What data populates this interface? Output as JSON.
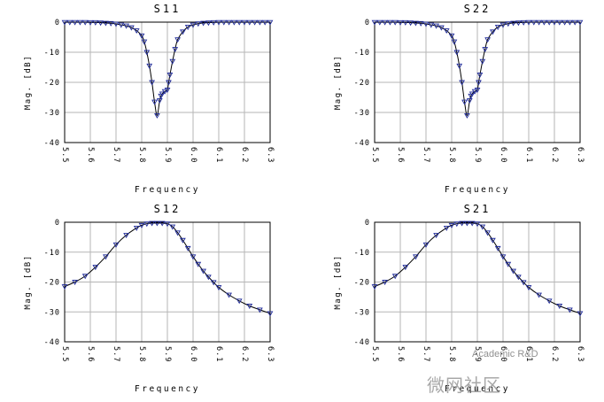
{
  "chart_data": [
    {
      "type": "line",
      "title": "S11",
      "xlabel": "Frequency",
      "ylabel": "Mag. [dB]",
      "xlim": [
        5.5,
        6.3
      ],
      "ylim": [
        -40,
        0
      ],
      "xticks": [
        "5.5",
        "5.6",
        "5.7",
        "5.8",
        "5.9",
        "6.0",
        "6.1",
        "6.2",
        "6.3"
      ],
      "yticks": [
        "0",
        "-10",
        "-20",
        "-30",
        "-40"
      ],
      "grid": true,
      "colors": {
        "line": "#000000",
        "markers": "#1f2a99"
      },
      "series": [
        {
          "x": [
            5.5,
            5.52,
            5.54,
            5.56,
            5.58,
            5.6,
            5.62,
            5.64,
            5.66,
            5.68,
            5.7,
            5.72,
            5.74,
            5.76,
            5.78,
            5.8,
            5.81,
            5.82,
            5.83,
            5.84,
            5.85,
            5.86,
            5.87,
            5.875,
            5.88,
            5.89,
            5.9,
            5.905,
            5.91,
            5.92,
            5.93,
            5.94,
            5.96,
            5.98,
            6.0,
            6.02,
            6.04,
            6.06,
            6.08,
            6.1,
            6.12,
            6.14,
            6.16,
            6.18,
            6.2,
            6.22,
            6.24,
            6.26,
            6.28,
            6.3
          ],
          "values": [
            -0.05,
            -0.05,
            -0.05,
            -0.05,
            -0.05,
            -0.1,
            -0.1,
            -0.2,
            -0.3,
            -0.4,
            -0.6,
            -0.9,
            -1.2,
            -1.8,
            -2.8,
            -4.5,
            -6.5,
            -10.0,
            -14.5,
            -20.0,
            -26.5,
            -31.0,
            -26.0,
            -24.5,
            -23.8,
            -23.0,
            -22.5,
            -20.0,
            -17.5,
            -13.0,
            -9.0,
            -5.8,
            -3.2,
            -1.6,
            -0.9,
            -0.5,
            -0.3,
            -0.2,
            -0.1,
            -0.05,
            -0.05,
            -0.05,
            -0.05,
            -0.05,
            -0.05,
            -0.05,
            -0.05,
            -0.05,
            -0.05,
            -0.05
          ]
        }
      ]
    },
    {
      "type": "line",
      "title": "S22",
      "xlabel": "Frequency",
      "ylabel": "Mag. [dB]",
      "xlim": [
        5.5,
        6.3
      ],
      "ylim": [
        -40,
        0
      ],
      "xticks": [
        "5.5",
        "5.6",
        "5.7",
        "5.8",
        "5.9",
        "6.0",
        "6.1",
        "6.2",
        "6.3"
      ],
      "yticks": [
        "0",
        "-10",
        "-20",
        "-30",
        "-40"
      ],
      "grid": true,
      "colors": {
        "line": "#000000",
        "markers": "#1f2a99"
      },
      "series": [
        {
          "x": [
            5.5,
            5.52,
            5.54,
            5.56,
            5.58,
            5.6,
            5.62,
            5.64,
            5.66,
            5.68,
            5.7,
            5.72,
            5.74,
            5.76,
            5.78,
            5.8,
            5.81,
            5.82,
            5.83,
            5.84,
            5.85,
            5.86,
            5.87,
            5.875,
            5.88,
            5.89,
            5.9,
            5.905,
            5.91,
            5.92,
            5.93,
            5.94,
            5.96,
            5.98,
            6.0,
            6.02,
            6.04,
            6.06,
            6.08,
            6.1,
            6.12,
            6.14,
            6.16,
            6.18,
            6.2,
            6.22,
            6.24,
            6.26,
            6.28,
            6.3
          ],
          "values": [
            -0.05,
            -0.05,
            -0.05,
            -0.05,
            -0.05,
            -0.1,
            -0.1,
            -0.2,
            -0.3,
            -0.4,
            -0.6,
            -0.9,
            -1.2,
            -1.8,
            -2.8,
            -4.5,
            -6.5,
            -10.0,
            -14.5,
            -20.0,
            -26.5,
            -31.0,
            -26.0,
            -24.5,
            -23.8,
            -23.0,
            -22.5,
            -20.0,
            -17.5,
            -13.0,
            -9.0,
            -5.8,
            -3.2,
            -1.6,
            -0.9,
            -0.5,
            -0.3,
            -0.2,
            -0.1,
            -0.05,
            -0.05,
            -0.05,
            -0.05,
            -0.05,
            -0.05,
            -0.05,
            -0.05,
            -0.05,
            -0.05,
            -0.05
          ]
        }
      ]
    },
    {
      "type": "line",
      "title": "S12",
      "xlabel": "Frequency",
      "ylabel": "Mag. [dB]",
      "xlim": [
        5.5,
        6.3
      ],
      "ylim": [
        -40,
        0
      ],
      "xticks": [
        "5.5",
        "5.6",
        "5.7",
        "5.8",
        "5.9",
        "6.0",
        "6.1",
        "6.2",
        "6.3"
      ],
      "yticks": [
        "0",
        "-10",
        "-20",
        "-30",
        "-40"
      ],
      "grid": true,
      "colors": {
        "line": "#000000",
        "markers": "#1f2a99"
      },
      "series": [
        {
          "x": [
            5.5,
            5.54,
            5.58,
            5.62,
            5.66,
            5.7,
            5.74,
            5.78,
            5.8,
            5.82,
            5.84,
            5.86,
            5.88,
            5.9,
            5.92,
            5.94,
            5.96,
            5.98,
            6.0,
            6.02,
            6.04,
            6.06,
            6.08,
            6.1,
            6.14,
            6.18,
            6.22,
            6.26,
            6.3
          ],
          "values": [
            -21.5,
            -20.0,
            -18.0,
            -15.0,
            -11.5,
            -7.5,
            -4.3,
            -1.9,
            -1.0,
            -0.5,
            -0.3,
            -0.3,
            -0.3,
            -0.5,
            -1.5,
            -3.5,
            -6.0,
            -8.7,
            -11.5,
            -14.0,
            -16.3,
            -18.3,
            -20.1,
            -21.8,
            -24.3,
            -26.3,
            -28.0,
            -29.3,
            -30.5
          ]
        }
      ]
    },
    {
      "type": "line",
      "title": "S21",
      "xlabel": "Frequency",
      "ylabel": "Mag. [dB]",
      "xlim": [
        5.5,
        6.3
      ],
      "ylim": [
        -40,
        0
      ],
      "xticks": [
        "5.5",
        "5.6",
        "5.7",
        "5.8",
        "5.9",
        "6.0",
        "6.1",
        "6.2",
        "6.3"
      ],
      "yticks": [
        "0",
        "-10",
        "-20",
        "-30",
        "-40"
      ],
      "grid": true,
      "colors": {
        "line": "#000000",
        "markers": "#1f2a99"
      },
      "series": [
        {
          "x": [
            5.5,
            5.54,
            5.58,
            5.62,
            5.66,
            5.7,
            5.74,
            5.78,
            5.8,
            5.82,
            5.84,
            5.86,
            5.88,
            5.9,
            5.92,
            5.94,
            5.96,
            5.98,
            6.0,
            6.02,
            6.04,
            6.06,
            6.08,
            6.1,
            6.14,
            6.18,
            6.22,
            6.26,
            6.3
          ],
          "values": [
            -21.5,
            -20.0,
            -18.0,
            -15.0,
            -11.5,
            -7.5,
            -4.3,
            -1.9,
            -1.0,
            -0.5,
            -0.3,
            -0.3,
            -0.3,
            -0.5,
            -1.5,
            -3.5,
            -6.0,
            -8.7,
            -11.5,
            -14.0,
            -16.3,
            -18.3,
            -20.1,
            -21.8,
            -24.3,
            -26.3,
            -28.0,
            -29.3,
            -30.5
          ]
        }
      ]
    }
  ],
  "watermark": {
    "text": "Academic R&D",
    "logo_text": "微网社区"
  }
}
